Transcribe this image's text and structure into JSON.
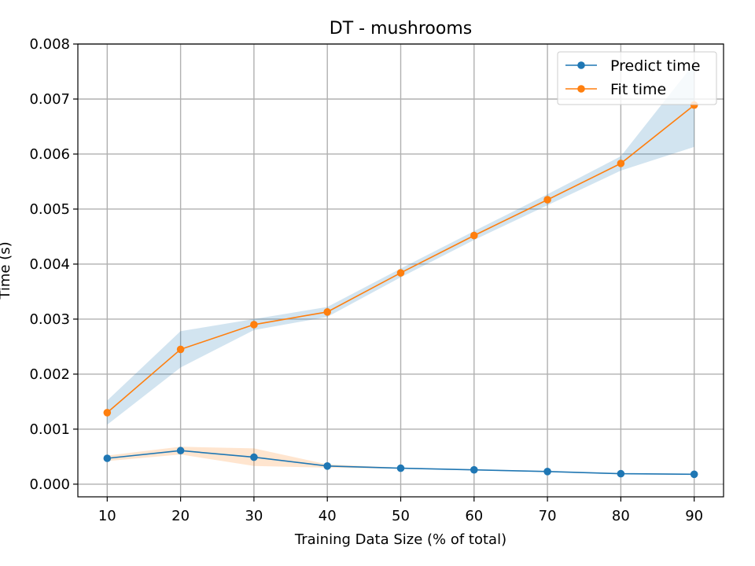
{
  "chart_data": {
    "type": "line",
    "title": "DT - mushrooms",
    "xlabel": "Training Data Size (% of total)",
    "ylabel": "Time (s)",
    "x": [
      10,
      20,
      30,
      40,
      50,
      60,
      70,
      80,
      90
    ],
    "xticks": [
      "10",
      "20",
      "30",
      "40",
      "50",
      "60",
      "70",
      "80",
      "90"
    ],
    "yticks": [
      "0.000",
      "0.001",
      "0.002",
      "0.003",
      "0.004",
      "0.005",
      "0.006",
      "0.007",
      "0.008"
    ],
    "xlim": [
      6,
      94
    ],
    "ylim": [
      -0.00023,
      0.008
    ],
    "grid": true,
    "legend_position": "top-right",
    "series": [
      {
        "name": "Predict time",
        "color": "#1f77b4",
        "band_color": "#ff7f0e",
        "values": [
          0.00047,
          0.00061,
          0.00049,
          0.00033,
          0.00029,
          0.00026,
          0.00023,
          0.00019,
          0.00018
        ],
        "band_upper": [
          0.00052,
          0.00068,
          0.00065,
          0.00036,
          0.0003,
          0.00027,
          0.00024,
          0.0002,
          0.00019
        ],
        "band_lower": [
          0.00042,
          0.00054,
          0.00033,
          0.0003,
          0.00028,
          0.00025,
          0.00022,
          0.00018,
          0.00017
        ]
      },
      {
        "name": "Fit time",
        "color": "#ff7f0e",
        "band_color": "#1f77b4",
        "values": [
          0.0013,
          0.00245,
          0.0029,
          0.00313,
          0.00384,
          0.00452,
          0.00517,
          0.00583,
          0.00689
        ],
        "band_upper": [
          0.00152,
          0.00278,
          0.003,
          0.00322,
          0.00392,
          0.0046,
          0.00527,
          0.00596,
          0.00765
        ],
        "band_lower": [
          0.00108,
          0.00212,
          0.0028,
          0.00304,
          0.00376,
          0.00444,
          0.00507,
          0.0057,
          0.00613
        ]
      }
    ]
  }
}
